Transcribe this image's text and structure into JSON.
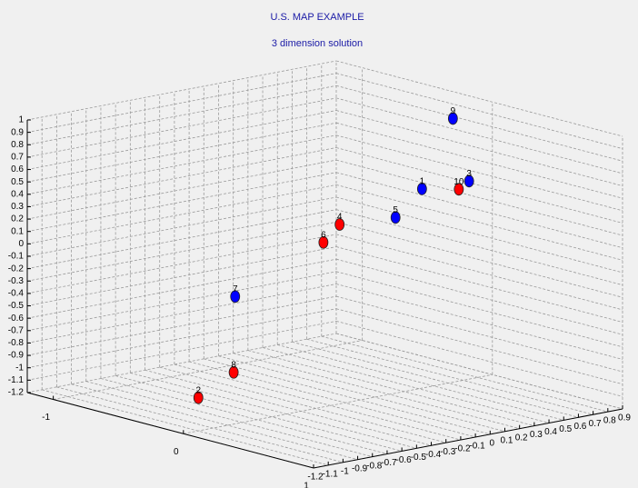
{
  "chart_data": {
    "type": "scatter3d",
    "title": "U.S. MAP EXAMPLE",
    "subtitle": "3 dimension solution",
    "labels": [
      "1",
      "2",
      "3",
      "4",
      "5",
      "6",
      "7",
      "8",
      "9",
      "10"
    ],
    "x": [
      -0.1,
      -0.1,
      -0.1,
      -0.1,
      -0.1,
      -0.1,
      -0.1,
      -0.1,
      -0.1,
      -0.1
    ],
    "y": [
      0.51,
      -1.01,
      0.83,
      -0.05,
      0.33,
      -0.16,
      -0.76,
      -0.77,
      0.72,
      0.76
    ],
    "z": [
      0.36,
      -0.98,
      0.35,
      0.2,
      0.17,
      0.08,
      -0.22,
      -0.83,
      0.88,
      0.3
    ],
    "colors": [
      "#0000ff",
      "#ff0000",
      "#0000ff",
      "#ff0000",
      "#0000ff",
      "#ff0000",
      "#0000ff",
      "#ff0000",
      "#0000ff",
      "#ff0000"
    ],
    "xlim": [
      -1.2,
      1
    ],
    "xticks": [
      -1,
      0,
      1
    ],
    "ylim": [
      -1.2,
      0.9
    ],
    "yticks": [
      -1.2,
      -1.1,
      -1,
      -0.9,
      -0.8,
      -0.7,
      -0.6,
      -0.5,
      -0.4,
      -0.3,
      -0.2,
      -0.1,
      0,
      0.1,
      0.2,
      0.3,
      0.4,
      0.5,
      0.6,
      0.7,
      0.8,
      0.9
    ],
    "zlim": [
      -1.2,
      1
    ],
    "zticks": [
      -1.2,
      -1.1,
      -1,
      -0.9,
      -0.8,
      -0.7,
      -0.6,
      -0.5,
      -0.4,
      -0.3,
      -0.2,
      -0.1,
      0,
      0.1,
      0.2,
      0.3,
      0.4,
      0.5,
      0.6,
      0.7,
      0.8,
      0.9,
      1
    ],
    "grid": true
  }
}
